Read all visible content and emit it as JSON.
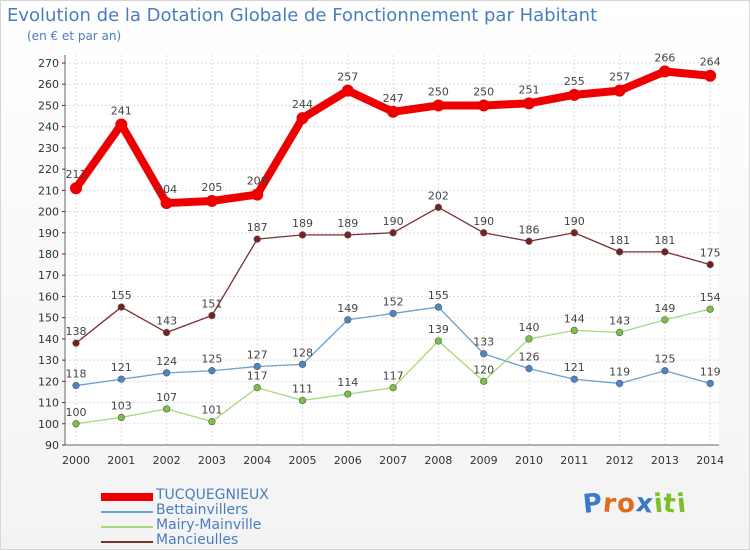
{
  "title": "Evolution de la Dotation Globale de Fonctionnement par Habitant",
  "subtitle": "(en € et par an)",
  "logo": {
    "letters": [
      "P",
      "r",
      "o",
      "x",
      "i",
      "t",
      "i"
    ],
    "colors": [
      "#3a78c8",
      "#e26a1c",
      "#e26a1c",
      "#3a78c8",
      "#7cbf2a",
      "#7cbf2a",
      "#7cbf2a"
    ]
  },
  "chart_data": {
    "type": "line",
    "title": "Evolution de la Dotation Globale de Fonctionnement par Habitant",
    "ylabel": "(en € et par an)",
    "xlabel": "",
    "ylim": [
      90,
      270
    ],
    "ytick_step": 10,
    "grid": true,
    "legend_position": "bottom-left",
    "categories": [
      "2000",
      "2001",
      "2002",
      "2003",
      "2004",
      "2005",
      "2006",
      "2007",
      "2008",
      "2009",
      "2010",
      "2011",
      "2012",
      "2013",
      "2014"
    ],
    "series": [
      {
        "name": "TUCQUEGNIEUX",
        "color": "#ee0000",
        "marker": "#ee0000",
        "width": "thick",
        "values": [
          211,
          241,
          204,
          205,
          208,
          244,
          257,
          247,
          250,
          250,
          251,
          255,
          257,
          266,
          264
        ]
      },
      {
        "name": "Bettainvillers",
        "color": "#6a9fd0",
        "marker": "#4a87c8",
        "width": "thin",
        "values": [
          118,
          121,
          124,
          125,
          127,
          128,
          149,
          152,
          155,
          133,
          126,
          121,
          119,
          125,
          119
        ]
      },
      {
        "name": "Mairy-Mainville",
        "color": "#a6d97a",
        "marker": "#7cc243",
        "width": "thin",
        "values": [
          100,
          103,
          107,
          101,
          117,
          111,
          114,
          117,
          139,
          120,
          140,
          144,
          143,
          149,
          154
        ]
      },
      {
        "name": "Mancieulles",
        "color": "#7a3030",
        "marker": "#7a2020",
        "width": "thin",
        "values": [
          138,
          155,
          143,
          151,
          187,
          189,
          189,
          190,
          202,
          190,
          186,
          190,
          181,
          181,
          175
        ]
      }
    ]
  }
}
